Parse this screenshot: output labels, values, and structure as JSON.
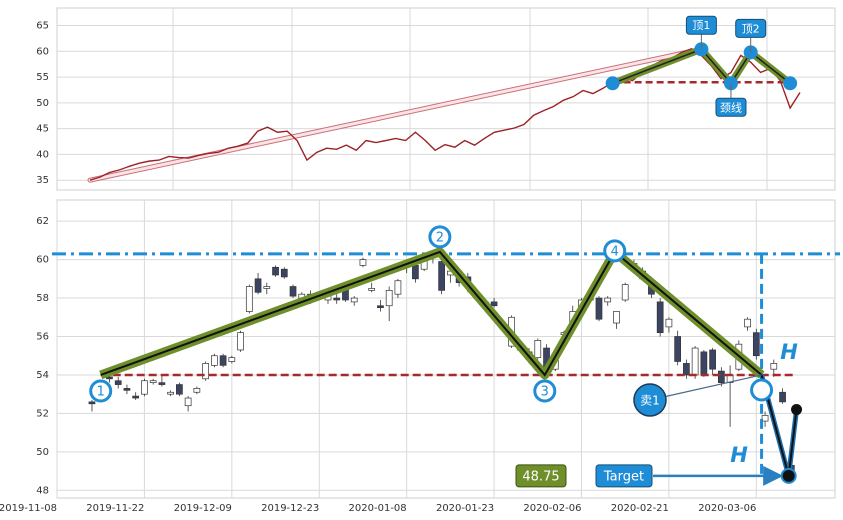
{
  "chart_data": [
    {
      "type": "line",
      "color": "#9b2226",
      "values": [
        35,
        35.6,
        36.5,
        37,
        37.7,
        38.3,
        38.7,
        38.9,
        39.6,
        39.4,
        39.3,
        39.8,
        40.2,
        40.4,
        41.2,
        41.6,
        42.2,
        44.5,
        45.3,
        44.3,
        44.5,
        42.7,
        38.9,
        40.4,
        41.2,
        41,
        41.8,
        40.8,
        42.7,
        42.3,
        42.7,
        43.1,
        42.7,
        44.3,
        42.7,
        40.8,
        41.9,
        41.4,
        42.7,
        41.8,
        43.1,
        44.3,
        44.7,
        45.1,
        45.8,
        47.6,
        48.5,
        49.3,
        50.5,
        51.2,
        52.4,
        51.8,
        52.8,
        54,
        55.1,
        54.3,
        55.9,
        57.2,
        58.2,
        58.6,
        59.8,
        60.5,
        59.2,
        57.2,
        54.7,
        55.9,
        59.2,
        57.9,
        55.9,
        56.7,
        54.3,
        49,
        52
      ],
      "ylim": [
        33.1,
        68.4
      ],
      "yticks": [
        35,
        40,
        45,
        50,
        55,
        60,
        65
      ],
      "grid": true,
      "pattern": {
        "x": [
          53,
          62,
          65,
          67,
          71
        ],
        "y": [
          53.8,
          60.4,
          53.8,
          59.8,
          53.8
        ],
        "labels": [
          "顶1",
          "颈线",
          "顶2"
        ]
      },
      "neckline": 54
    },
    {
      "type": "candlestick",
      "up_color": "#ffffff",
      "down_color": "#3b4563",
      "x": [
        4,
        5,
        6,
        7,
        8,
        9,
        10,
        11,
        12,
        13,
        14,
        15,
        16,
        17,
        18,
        19,
        20,
        21,
        22,
        23,
        24,
        25,
        26,
        27,
        28,
        29,
        30,
        31,
        32,
        33,
        34,
        35,
        36,
        37,
        38,
        39,
        40,
        41,
        42,
        43,
        44,
        45,
        46,
        47,
        48,
        49,
        50,
        51,
        52,
        53,
        54,
        55,
        56,
        57,
        58,
        59,
        60,
        61,
        62,
        63,
        64,
        65,
        66,
        67,
        68,
        69,
        70,
        71,
        72,
        73,
        74,
        75,
        76,
        77,
        78,
        79,
        80,
        81,
        82,
        83,
        84
      ],
      "open": [
        52.6,
        53.1,
        53.9,
        53.7,
        53.3,
        52.9,
        53.0,
        53.6,
        53.6,
        53.0,
        53.5,
        52.4,
        53.1,
        53.8,
        54.5,
        55.0,
        54.7,
        55.3,
        57.3,
        59.0,
        58.5,
        59.6,
        59.5,
        58.6,
        58.0,
        58.2,
        58.0,
        57.9,
        58.0,
        58.5,
        57.8,
        59.7,
        58.4,
        57.6,
        57.6,
        58.2,
        59.6,
        59.7,
        59.5,
        60.2,
        59.9,
        59.2,
        59.3,
        59.1,
        58.1,
        57.8,
        57.8,
        56.5,
        55.5,
        55.6,
        55.2,
        54.9,
        55.4,
        54.3,
        56.1,
        56.6,
        57.4,
        57.9,
        58.0,
        57.8,
        56.7,
        57.9,
        59.6,
        59.4,
        58.7,
        57.8,
        56.5,
        56.0,
        54.6,
        54.0,
        55.2,
        55.3,
        54.2,
        53.6,
        54.3,
        56.5,
        56.2,
        51.6,
        54.3,
        53.1,
        49.3
      ],
      "high": [
        52.7,
        53.4,
        54.0,
        53.9,
        53.5,
        53.1,
        53.8,
        53.8,
        54.0,
        53.2,
        53.6,
        52.9,
        53.4,
        54.7,
        55.1,
        55.1,
        55.0,
        56.3,
        58.7,
        59.3,
        58.8,
        59.7,
        59.6,
        58.7,
        58.3,
        58.4,
        58.3,
        58.5,
        58.2,
        58.7,
        58.1,
        60.1,
        58.8,
        57.9,
        58.6,
        59.0,
        59.9,
        60.0,
        60.1,
        60.4,
        60.0,
        59.6,
        59.5,
        59.3,
        58.3,
        57.9,
        58.0,
        56.8,
        57.1,
        55.8,
        55.4,
        55.9,
        55.6,
        55.0,
        56.3,
        57.6,
        58.0,
        58.1,
        58.1,
        58.1,
        57.3,
        58.8,
        60.0,
        59.6,
        59.0,
        58.0,
        57.0,
        56.3,
        54.8,
        55.5,
        55.3,
        55.4,
        54.4,
        54.5,
        55.8,
        57.0,
        56.4,
        52.1,
        54.8,
        53.3,
        49.5
      ],
      "low": [
        52.1,
        53.0,
        53.6,
        53.3,
        53.0,
        52.7,
        52.9,
        53.5,
        53.4,
        52.9,
        52.9,
        52.1,
        53.0,
        53.7,
        54.4,
        54.4,
        54.6,
        55.2,
        57.2,
        58.2,
        58.2,
        59.1,
        59.0,
        58.0,
        57.8,
        57.7,
        57.9,
        57.7,
        57.7,
        57.8,
        57.6,
        59.6,
        58.3,
        57.3,
        56.8,
        58.0,
        59.3,
        58.8,
        59.4,
        59.8,
        58.2,
        58.8,
        58.6,
        58.3,
        57.9,
        57.4,
        57.5,
        56.3,
        55.4,
        55.2,
        54.6,
        54.8,
        54.0,
        54.2,
        55.9,
        56.5,
        57.3,
        57.8,
        56.8,
        57.6,
        56.4,
        57.8,
        59.4,
        58.9,
        58.0,
        56.0,
        56.2,
        54.5,
        53.8,
        53.8,
        53.9,
        54.0,
        53.4,
        51.3,
        54.2,
        56.3,
        54.8,
        51.3,
        53.9,
        52.5,
        48.6
      ],
      "close": [
        52.5,
        53.3,
        53.8,
        53.5,
        53.2,
        52.8,
        53.7,
        53.7,
        53.5,
        53.1,
        53.0,
        52.8,
        53.3,
        54.6,
        55.0,
        54.5,
        54.9,
        56.2,
        58.6,
        58.3,
        58.6,
        59.2,
        59.1,
        58.1,
        58.2,
        57.9,
        58.2,
        58.3,
        57.9,
        57.9,
        58.0,
        60.0,
        58.5,
        57.5,
        58.4,
        58.9,
        59.8,
        59.0,
        60.0,
        60.3,
        58.4,
        59.4,
        58.8,
        58.6,
        58.0,
        57.5,
        57.6,
        56.4,
        57.0,
        55.3,
        54.8,
        55.8,
        54.1,
        54.9,
        56.2,
        57.3,
        57.9,
        58.0,
        56.9,
        58.0,
        57.3,
        58.7,
        59.8,
        59.0,
        58.2,
        56.2,
        56.9,
        54.7,
        54.0,
        55.4,
        54.0,
        54.3,
        53.6,
        54.0,
        55.6,
        56.9,
        55.0,
        51.9,
        54.6,
        52.6,
        48.75
      ],
      "xlim": [
        0,
        89
      ],
      "xticks": [
        {
          "value": 0,
          "label": "2019-11-08"
        },
        {
          "value": 10,
          "label": "2019-11-22"
        },
        {
          "value": 20,
          "label": "2019-12-09"
        },
        {
          "value": 30,
          "label": "2019-12-23"
        },
        {
          "value": 40,
          "label": "2020-01-08"
        },
        {
          "value": 50,
          "label": "2020-01-23"
        },
        {
          "value": 60,
          "label": "2020-02-06"
        },
        {
          "value": 70,
          "label": "2020-02-21"
        },
        {
          "value": 80,
          "label": "2020-03-06"
        }
      ],
      "ylim": [
        47.6,
        63.1
      ],
      "yticks": [
        48,
        50,
        52,
        54,
        56,
        58,
        60,
        62
      ],
      "grid": true,
      "pattern": {
        "x": [
          5,
          43.8,
          55.8,
          63.8,
          80.6
        ],
        "y": [
          54,
          60.4,
          54,
          60.4,
          54
        ],
        "labels": [
          "1",
          "2",
          "3",
          "4"
        ]
      },
      "breakdown": {
        "x": [
          80.6,
          83.7,
          84.6
        ],
        "y": [
          54,
          48.75,
          52.2
        ]
      },
      "neckline": 54,
      "resistance": 60.3,
      "target": 48.75,
      "target_text": "Target",
      "signal": "卖1",
      "height_label": "H"
    }
  ]
}
